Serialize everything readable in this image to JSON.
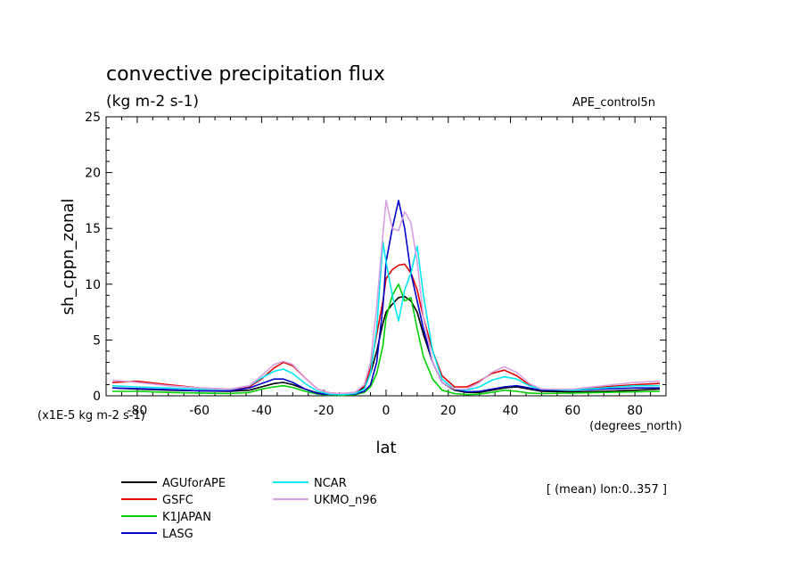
{
  "chart_data": {
    "type": "line",
    "title": "convective precipitation flux",
    "units": "(kg m-2 s-1)",
    "run_label": "APE_control5n",
    "ylabel": "sh_cppn_zonal",
    "xlabel": "lat",
    "x_unit": "(degrees_north)",
    "y_scale_note": "(x1E-5 kg m-2 s-1)",
    "mean_note": "[ (mean) lon:0..357 ]",
    "xlim": [
      -90,
      90
    ],
    "ylim": [
      0,
      25
    ],
    "x_ticks": [
      -80,
      -60,
      -40,
      -20,
      0,
      20,
      40,
      60,
      80
    ],
    "y_ticks": [
      0,
      5,
      10,
      15,
      20,
      25
    ],
    "grid": false,
    "legend_position": "bottom-left",
    "series": [
      {
        "name": "AGUforAPE",
        "color": "#000000",
        "x": [
          -88,
          -80,
          -70,
          -60,
          -50,
          -44,
          -40,
          -36,
          -33,
          -30,
          -26,
          -22,
          -18,
          -14,
          -10,
          -7,
          -5,
          -3,
          -1,
          0,
          2,
          4,
          6,
          8,
          10,
          12,
          15,
          18,
          22,
          26,
          30,
          34,
          38,
          42,
          46,
          50,
          60,
          70,
          80,
          88
        ],
        "y": [
          0.7,
          0.6,
          0.5,
          0.45,
          0.4,
          0.5,
          0.8,
          1.1,
          1.2,
          1.0,
          0.6,
          0.25,
          0.1,
          0.1,
          0.2,
          0.8,
          2.0,
          4.0,
          6.5,
          7.5,
          8.2,
          8.8,
          8.9,
          8.5,
          7.5,
          5.5,
          3.0,
          1.2,
          0.5,
          0.3,
          0.3,
          0.5,
          0.7,
          0.8,
          0.6,
          0.4,
          0.35,
          0.4,
          0.5,
          0.6
        ]
      },
      {
        "name": "GSFC",
        "color": "#e00000",
        "x": [
          -88,
          -80,
          -70,
          -60,
          -50,
          -44,
          -40,
          -36,
          -33,
          -30,
          -26,
          -22,
          -18,
          -14,
          -10,
          -7,
          -5,
          -3,
          -1,
          0,
          2,
          4,
          6,
          8,
          10,
          12,
          15,
          18,
          22,
          26,
          30,
          34,
          38,
          42,
          46,
          50,
          60,
          70,
          80,
          88
        ],
        "y": [
          1.2,
          1.3,
          1.0,
          0.7,
          0.6,
          0.8,
          1.5,
          2.5,
          3.0,
          2.7,
          1.6,
          0.6,
          0.25,
          0.2,
          0.3,
          0.9,
          2.5,
          5.5,
          8.5,
          10.5,
          11.3,
          11.7,
          11.8,
          11.0,
          9.5,
          7.0,
          4.0,
          1.8,
          0.8,
          0.8,
          1.3,
          2.0,
          2.3,
          1.8,
          1.0,
          0.6,
          0.5,
          0.8,
          1.0,
          1.1
        ]
      },
      {
        "name": "K1JAPAN",
        "color": "#00d000",
        "x": [
          -88,
          -80,
          -70,
          -60,
          -50,
          -44,
          -40,
          -36,
          -33,
          -30,
          -26,
          -22,
          -18,
          -14,
          -10,
          -7,
          -5,
          -3,
          -1,
          0,
          2,
          4,
          6,
          8,
          10,
          12,
          15,
          18,
          22,
          26,
          30,
          34,
          38,
          42,
          46,
          50,
          60,
          70,
          80,
          88
        ],
        "y": [
          0.4,
          0.4,
          0.3,
          0.25,
          0.2,
          0.3,
          0.6,
          0.8,
          0.9,
          0.75,
          0.4,
          0.15,
          0.05,
          0.05,
          0.1,
          0.3,
          0.8,
          2.0,
          4.5,
          7.0,
          9.0,
          10.0,
          8.5,
          8.8,
          6.0,
          3.5,
          1.5,
          0.5,
          0.2,
          0.1,
          0.15,
          0.3,
          0.5,
          0.4,
          0.25,
          0.2,
          0.25,
          0.3,
          0.35,
          0.4
        ]
      },
      {
        "name": "LASG",
        "color": "#0000c8",
        "x": [
          -88,
          -80,
          -70,
          -60,
          -50,
          -44,
          -40,
          -36,
          -33,
          -30,
          -26,
          -22,
          -18,
          -14,
          -10,
          -7,
          -5,
          -3,
          -1,
          0,
          2,
          4,
          6,
          8,
          10,
          12,
          15,
          18,
          22,
          26,
          30,
          34,
          38,
          42,
          46,
          50,
          60,
          70,
          80,
          88
        ],
        "y": [
          0.7,
          0.65,
          0.55,
          0.45,
          0.45,
          0.7,
          1.1,
          1.5,
          1.5,
          1.2,
          0.6,
          0.2,
          0.1,
          0.1,
          0.15,
          0.4,
          1.0,
          3.0,
          8.0,
          12.0,
          15.0,
          17.5,
          15.0,
          11.0,
          8.5,
          6.0,
          3.0,
          1.2,
          0.6,
          0.35,
          0.4,
          0.6,
          0.8,
          0.9,
          0.7,
          0.5,
          0.5,
          0.6,
          0.7,
          0.7
        ]
      },
      {
        "name": "NCAR",
        "color": "#00e8f0",
        "x": [
          -88,
          -80,
          -70,
          -60,
          -50,
          -44,
          -40,
          -36,
          -33,
          -30,
          -26,
          -22,
          -18,
          -14,
          -10,
          -7,
          -5,
          -3,
          -1,
          0,
          2,
          4,
          6,
          8,
          10,
          12,
          15,
          18,
          22,
          26,
          30,
          34,
          38,
          42,
          46,
          50,
          60,
          70,
          80,
          88
        ],
        "y": [
          0.9,
          0.8,
          0.7,
          0.6,
          0.6,
          0.9,
          1.6,
          2.2,
          2.4,
          2.0,
          1.1,
          0.4,
          0.15,
          0.1,
          0.2,
          0.6,
          2.0,
          6.0,
          13.8,
          12.0,
          9.0,
          6.7,
          9.5,
          11.0,
          13.4,
          9.0,
          4.0,
          1.5,
          0.6,
          0.5,
          0.8,
          1.4,
          1.7,
          1.5,
          0.9,
          0.6,
          0.5,
          0.7,
          0.9,
          0.9
        ]
      },
      {
        "name": "UKMO_n96",
        "color": "#d8a0e0",
        "x": [
          -88,
          -80,
          -70,
          -60,
          -50,
          -44,
          -40,
          -36,
          -33,
          -30,
          -26,
          -22,
          -18,
          -14,
          -10,
          -7,
          -5,
          -3,
          -1,
          0,
          2,
          4,
          6,
          8,
          10,
          12,
          15,
          18,
          22,
          26,
          30,
          34,
          38,
          42,
          46,
          50,
          60,
          70,
          80,
          88
        ],
        "y": [
          1.4,
          1.2,
          0.9,
          0.7,
          0.6,
          0.9,
          1.8,
          2.8,
          3.1,
          2.8,
          1.6,
          0.6,
          0.25,
          0.2,
          0.3,
          1.0,
          3.0,
          8.0,
          14.5,
          17.5,
          15.0,
          14.8,
          16.5,
          15.5,
          12.0,
          7.0,
          3.0,
          1.2,
          0.6,
          0.6,
          1.2,
          2.1,
          2.6,
          2.1,
          1.1,
          0.6,
          0.6,
          0.9,
          1.2,
          1.3
        ]
      }
    ]
  }
}
